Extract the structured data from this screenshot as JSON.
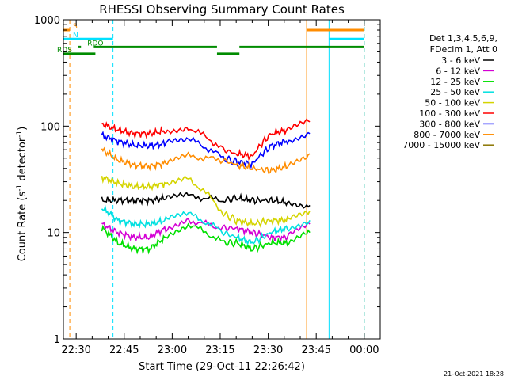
{
  "chart_data": {
    "type": "line",
    "title": "RHESSI Observing Summary Count Rates",
    "xlabel": "Start Time (29-Oct-11 22:26:42)",
    "ylabel_main": "Count Rate (s",
    "ylabel_sup1": "-1",
    "ylabel_mid": " detector",
    "ylabel_sup2": "-1",
    "ylabel_end": ")",
    "yscale": "log",
    "ylim": [
      1,
      1000
    ],
    "xlim_minutes": [
      -4.0,
      95.0
    ],
    "y_ticks": [
      {
        "value": 1,
        "label": "1"
      },
      {
        "value": 10,
        "label": "10"
      },
      {
        "value": 100,
        "label": "100"
      },
      {
        "value": 1000,
        "label": "1000"
      }
    ],
    "x_ticks": [
      {
        "value": 0,
        "label": "22:30"
      },
      {
        "value": 15,
        "label": "22:45"
      },
      {
        "value": 30,
        "label": "23:00"
      },
      {
        "value": 45,
        "label": "23:15"
      },
      {
        "value": 60,
        "label": "23:30"
      },
      {
        "value": 75,
        "label": "23:45"
      },
      {
        "value": 90,
        "label": "00:00"
      }
    ],
    "legend_header": [
      "Det 1,3,4,5,6,9,",
      "FDecim 1, Att 0"
    ],
    "legend_position": "right",
    "series": [
      {
        "name": "3 - 6 keV",
        "color": "#000000",
        "values": [
          20,
          20,
          20,
          20,
          21,
          22,
          20,
          21,
          20,
          20,
          19,
          18
        ]
      },
      {
        "name": "6 - 12 keV",
        "color": "#d400d4",
        "values": [
          12,
          10,
          9,
          9,
          11,
          13,
          11,
          11,
          10,
          9,
          9,
          12
        ]
      },
      {
        "name": "12 - 25 keV",
        "color": "#00e000",
        "values": [
          11,
          8,
          7,
          7,
          9,
          12,
          8,
          8,
          7,
          8,
          8,
          10
        ]
      },
      {
        "name": "25 - 50 keV",
        "color": "#00e0e0",
        "values": [
          17,
          13,
          12,
          12,
          13,
          15,
          10,
          9,
          8,
          10,
          11,
          13
        ]
      },
      {
        "name": "50 - 100 keV",
        "color": "#d4d400",
        "values": [
          33,
          29,
          27,
          27,
          29,
          32,
          15,
          13,
          12,
          13,
          13,
          16
        ]
      },
      {
        "name": "100 - 300 keV",
        "color": "#ff0000",
        "values": [
          105,
          92,
          85,
          85,
          90,
          98,
          60,
          55,
          52,
          85,
          92,
          110
        ]
      },
      {
        "name": "300 - 800 keV",
        "color": "#0000ff",
        "values": [
          82,
          72,
          66,
          65,
          69,
          76,
          50,
          46,
          44,
          65,
          73,
          85
        ]
      },
      {
        "name": "800 - 7000 keV",
        "color": "#ff8c00",
        "values": [
          60,
          48,
          43,
          42,
          45,
          52,
          48,
          43,
          40,
          38,
          42,
          55
        ]
      },
      {
        "name": "7000 - 15000 keV",
        "color": "#8b7500",
        "values": []
      }
    ],
    "sample_minutes": [
      8,
      13,
      18,
      23,
      28,
      35,
      46,
      50,
      55,
      61,
      66,
      73
    ],
    "state_bars": [
      {
        "label": "S",
        "color": "#ff8c00",
        "value": 800,
        "segments": [
          [
            -4,
            -2
          ],
          [
            72,
            90
          ]
        ]
      },
      {
        "label": "N",
        "color": "#00e0ff",
        "value": 660,
        "segments": [
          [
            -4,
            11.5
          ],
          [
            79,
            90
          ]
        ]
      },
      {
        "label": "RDO",
        "color": "#008c00",
        "value": 555,
        "segments": [
          [
            0.5,
            1.5
          ],
          [
            5.5,
            44
          ],
          [
            51,
            90
          ]
        ]
      },
      {
        "label": "RDS",
        "color": "#008c00",
        "value": 480,
        "segments": [
          [
            -4,
            6
          ],
          [
            44,
            51
          ]
        ]
      }
    ],
    "vlines": [
      {
        "x": -4,
        "color": "#00e0ff",
        "style": "solid"
      },
      {
        "x": -2,
        "color": "#ff8c00",
        "style": "dash"
      },
      {
        "x": 11.5,
        "color": "#00e0ff",
        "style": "dash"
      },
      {
        "x": 72,
        "color": "#ff8c00",
        "style": "solid"
      },
      {
        "x": 79,
        "color": "#00e0ff",
        "style": "solid"
      },
      {
        "x": 90,
        "color": "#ff8c00",
        "style": "dash"
      },
      {
        "x": 90,
        "color": "#00e0ff",
        "style": "dash"
      }
    ],
    "timestamp": "21-Oct-2021 18:28"
  }
}
